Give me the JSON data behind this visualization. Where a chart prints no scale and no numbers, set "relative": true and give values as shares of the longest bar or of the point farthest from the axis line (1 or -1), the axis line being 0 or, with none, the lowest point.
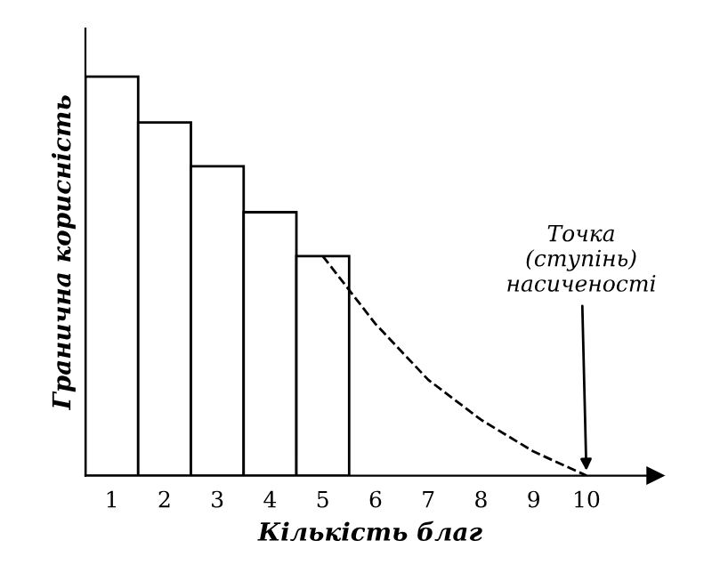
{
  "chart_data": {
    "type": "bar",
    "relative": true,
    "xlabel": "Кількість благ",
    "ylabel": "Гранична корисність",
    "categories": [
      "1",
      "2",
      "3",
      "4",
      "5",
      "6",
      "7",
      "8",
      "9",
      "10"
    ],
    "series": [
      {
        "color": "#ffffff",
        "values": [
          1,
          0.885,
          0.775,
          0.66,
          0.55,
          null,
          null,
          null,
          null,
          null
        ]
      },
      {
        "type": "line",
        "color": "#000000",
        "line_style": "dashed",
        "values": [
          null,
          null,
          null,
          null,
          0.55,
          0.38,
          0.24,
          0.14,
          0.06,
          0
        ]
      }
    ],
    "annotations": [
      {
        "text": "Точка\n(ступінь)\nнасиченості",
        "x": "10",
        "y": 0
      }
    ],
    "grid": false,
    "legend": false
  }
}
